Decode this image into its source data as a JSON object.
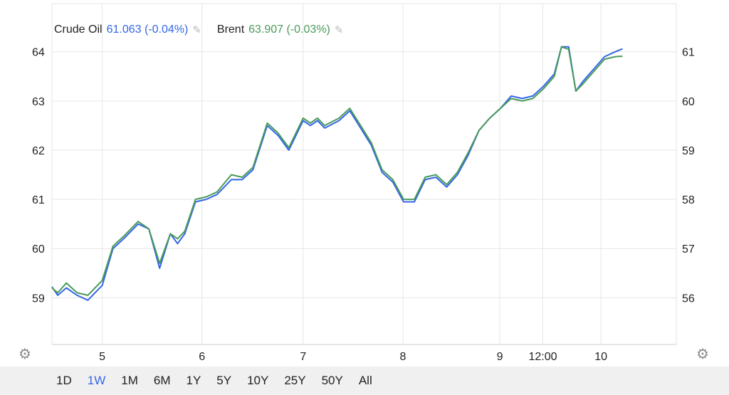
{
  "legend": {
    "series1_name": "Crude Oil",
    "series1_value": "61.063 (-0.04%)",
    "series2_name": "Brent",
    "series2_value": "63.907 (-0.03%)"
  },
  "range_buttons": [
    "1D",
    "1W",
    "1M",
    "6M",
    "1Y",
    "5Y",
    "10Y",
    "25Y",
    "50Y",
    "All"
  ],
  "active_range": "1W",
  "icons": {
    "left_settings": "gear-icon",
    "right_settings": "gear-icon",
    "edit": "pencil-icon"
  },
  "colors": {
    "crude": "#3366e6",
    "brent": "#4a9a5a",
    "grid": "#e6e6e6"
  },
  "chart_data": {
    "type": "line",
    "x_ticks": [
      {
        "label": "5",
        "t": 0.7
      },
      {
        "label": "6",
        "t": 2.09
      },
      {
        "label": "7",
        "t": 3.5
      },
      {
        "label": "8",
        "t": 4.89
      },
      {
        "label": "9",
        "t": 6.24
      },
      {
        "label": "12:00",
        "t": 6.84
      },
      {
        "label": "10",
        "t": 7.65
      }
    ],
    "xlim": [
      0,
      8.7
    ],
    "left_axis": {
      "ticks": [
        59,
        60,
        61,
        62,
        63,
        64
      ],
      "ylim": [
        58.05,
        64.98
      ]
    },
    "right_axis": {
      "ticks": [
        56,
        57,
        58,
        59,
        60,
        61
      ],
      "ylim": [
        55.05,
        61.98
      ]
    },
    "grid": true,
    "series": [
      {
        "name": "Crude Oil",
        "axis": "right",
        "x": [
          0.0,
          0.08,
          0.2,
          0.35,
          0.5,
          0.7,
          0.85,
          1.0,
          1.2,
          1.35,
          1.5,
          1.65,
          1.75,
          1.85,
          2.0,
          2.15,
          2.3,
          2.5,
          2.65,
          2.8,
          3.0,
          3.15,
          3.3,
          3.5,
          3.6,
          3.7,
          3.8,
          4.0,
          4.15,
          4.3,
          4.45,
          4.6,
          4.75,
          4.9,
          5.05,
          5.2,
          5.35,
          5.5,
          5.65,
          5.8,
          5.95,
          6.1,
          6.25,
          6.4,
          6.55,
          6.7,
          6.85,
          7.0,
          7.1,
          7.2,
          7.3,
          7.4,
          7.55,
          7.7,
          7.85,
          7.95
        ],
        "values": [
          56.22,
          56.05,
          56.2,
          56.05,
          55.95,
          56.25,
          57.0,
          57.2,
          57.5,
          57.4,
          56.6,
          57.3,
          57.1,
          57.3,
          57.95,
          58.0,
          58.1,
          58.4,
          58.4,
          58.6,
          59.5,
          59.3,
          59.0,
          59.6,
          59.5,
          59.6,
          59.45,
          59.6,
          59.8,
          59.45,
          59.1,
          58.55,
          58.35,
          57.95,
          57.95,
          58.4,
          58.45,
          58.25,
          58.5,
          58.9,
          59.4,
          59.65,
          59.85,
          60.1,
          60.05,
          60.1,
          60.3,
          60.55,
          61.1,
          61.1,
          60.2,
          60.4,
          60.65,
          60.9,
          61.0,
          61.06
        ]
      },
      {
        "name": "Brent",
        "axis": "left",
        "x": [
          0.0,
          0.08,
          0.2,
          0.35,
          0.5,
          0.7,
          0.85,
          1.0,
          1.2,
          1.35,
          1.5,
          1.65,
          1.75,
          1.85,
          2.0,
          2.15,
          2.3,
          2.5,
          2.65,
          2.8,
          3.0,
          3.15,
          3.3,
          3.5,
          3.6,
          3.7,
          3.8,
          4.0,
          4.15,
          4.3,
          4.45,
          4.6,
          4.75,
          4.9,
          5.05,
          5.2,
          5.35,
          5.5,
          5.65,
          5.8,
          5.95,
          6.1,
          6.25,
          6.4,
          6.55,
          6.7,
          6.85,
          7.0,
          7.1,
          7.2,
          7.3,
          7.4,
          7.55,
          7.7,
          7.85,
          7.95
        ],
        "values": [
          59.2,
          59.1,
          59.3,
          59.1,
          59.05,
          59.35,
          60.05,
          60.25,
          60.55,
          60.4,
          59.7,
          60.3,
          60.2,
          60.35,
          61.0,
          61.05,
          61.15,
          61.5,
          61.45,
          61.65,
          62.55,
          62.35,
          62.05,
          62.65,
          62.55,
          62.65,
          62.5,
          62.65,
          62.85,
          62.5,
          62.15,
          61.6,
          61.4,
          61.0,
          61.0,
          61.45,
          61.5,
          61.3,
          61.55,
          61.95,
          62.4,
          62.65,
          62.85,
          63.05,
          63.0,
          63.05,
          63.25,
          63.5,
          64.1,
          64.05,
          63.2,
          63.35,
          63.6,
          63.85,
          63.9,
          63.91
        ]
      }
    ]
  }
}
